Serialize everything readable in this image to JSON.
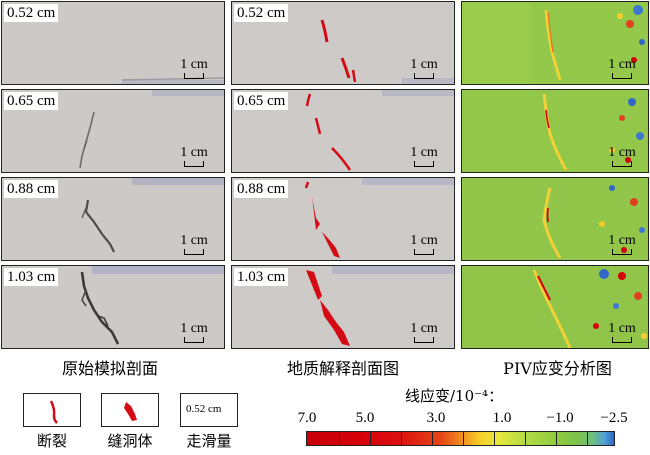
{
  "captions": [
    "原始模拟剖面",
    "地质解释剖面图",
    "PIV应变分析图"
  ],
  "rows": [
    {
      "slip": "0.52 cm"
    },
    {
      "slip": "0.65 cm"
    },
    {
      "slip": "0.88 cm"
    },
    {
      "slip": "1.03 cm"
    }
  ],
  "scale_label": "1 cm",
  "legend": {
    "fault_label": "断裂",
    "cave_label": "缝洞体",
    "slip_label": "走滑量",
    "slip_example": "0.52 cm"
  },
  "colorbar": {
    "title": "线应变/10⁻⁴：",
    "ticks": [
      "7.0",
      "5.0",
      "3.0",
      "1.0",
      "−1.0",
      "−2.5"
    ]
  },
  "colors": {
    "fault_red": "#d40a14",
    "strain_green": "#8fc64a",
    "specimen_gray": "#ccc8c6"
  }
}
